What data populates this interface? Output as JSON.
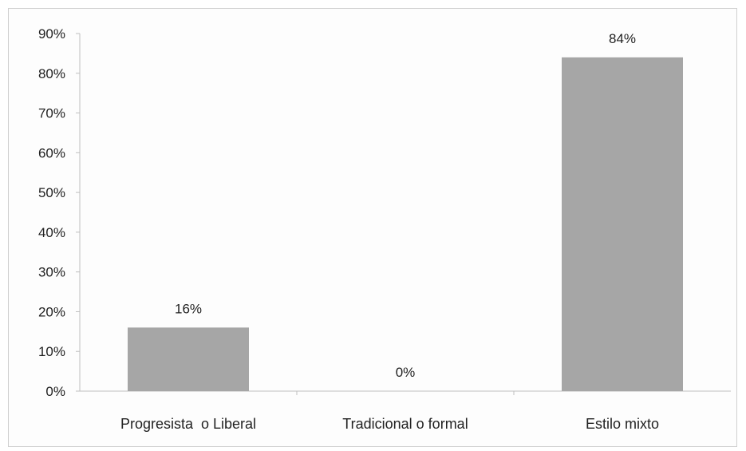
{
  "chart_data": {
    "type": "bar",
    "categories": [
      "Progresista  o Liberal",
      "Tradicional o formal",
      "Estilo mixto"
    ],
    "values": [
      16,
      0,
      84
    ],
    "data_labels": [
      "16%",
      "0%",
      "84%"
    ],
    "title": "",
    "xlabel": "",
    "ylabel": "",
    "ylim": [
      0,
      90
    ],
    "yticks": [
      0,
      10,
      20,
      30,
      40,
      50,
      60,
      70,
      80,
      90
    ],
    "ytick_labels": [
      "0%",
      "10%",
      "20%",
      "30%",
      "40%",
      "50%",
      "60%",
      "70%",
      "80%",
      "90%"
    ],
    "grid": false,
    "legend": "none",
    "bar_color": "#a6a6a6",
    "axis_color": "#bfbfbf"
  }
}
